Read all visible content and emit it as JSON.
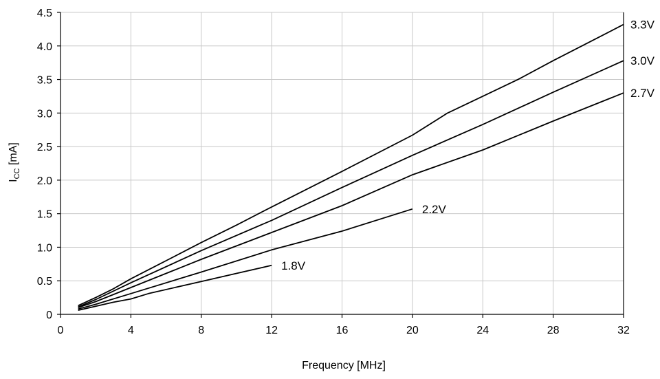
{
  "chart_data": {
    "type": "line",
    "title": "",
    "xlabel": "Frequency [MHz]",
    "ylabel": {
      "main": "I",
      "subscript": "CC",
      "unit": " [mA]"
    },
    "xlim": [
      0,
      32
    ],
    "ylim": [
      0,
      4.5
    ],
    "xticks": [
      0,
      4,
      8,
      12,
      16,
      20,
      24,
      28,
      32
    ],
    "xtick_labels": [
      "0",
      "4",
      "8",
      "12",
      "16",
      "20",
      "24",
      "28",
      "32"
    ],
    "yticks": [
      0,
      0.5,
      1.0,
      1.5,
      2.0,
      2.5,
      3.0,
      3.5,
      4.0,
      4.5
    ],
    "ytick_labels": [
      "0",
      "0.5",
      "1.0",
      "1.5",
      "2.0",
      "2.5",
      "3.0",
      "3.5",
      "4.0",
      "4.5"
    ],
    "grid": true,
    "legend": "none",
    "series": [
      {
        "name": "3.3V",
        "x": [
          1,
          2,
          3,
          4,
          6,
          8,
          10,
          12,
          16,
          20,
          22,
          24,
          26,
          28,
          30,
          32
        ],
        "y": [
          0.13,
          0.25,
          0.38,
          0.53,
          0.8,
          1.07,
          1.33,
          1.6,
          2.13,
          2.67,
          3.0,
          3.25,
          3.5,
          3.78,
          4.05,
          4.32
        ]
      },
      {
        "name": "3.0V",
        "x": [
          1,
          2,
          4,
          8,
          12,
          16,
          20,
          24,
          28,
          32
        ],
        "y": [
          0.11,
          0.22,
          0.47,
          0.95,
          1.4,
          1.89,
          2.37,
          2.83,
          3.31,
          3.78
        ]
      },
      {
        "name": "2.7V",
        "x": [
          1,
          2,
          4,
          8,
          12,
          16,
          20,
          24,
          28,
          32
        ],
        "y": [
          0.1,
          0.19,
          0.4,
          0.82,
          1.22,
          1.62,
          2.08,
          2.45,
          2.88,
          3.3
        ]
      },
      {
        "name": "2.2V",
        "x": [
          1,
          2,
          4,
          8,
          12,
          16,
          20
        ],
        "y": [
          0.08,
          0.15,
          0.31,
          0.63,
          0.96,
          1.24,
          1.57
        ]
      },
      {
        "name": "1.8V",
        "x": [
          1,
          2,
          3,
          4,
          5,
          8,
          10,
          12
        ],
        "y": [
          0.06,
          0.12,
          0.18,
          0.23,
          0.31,
          0.49,
          0.61,
          0.73
        ]
      }
    ]
  }
}
